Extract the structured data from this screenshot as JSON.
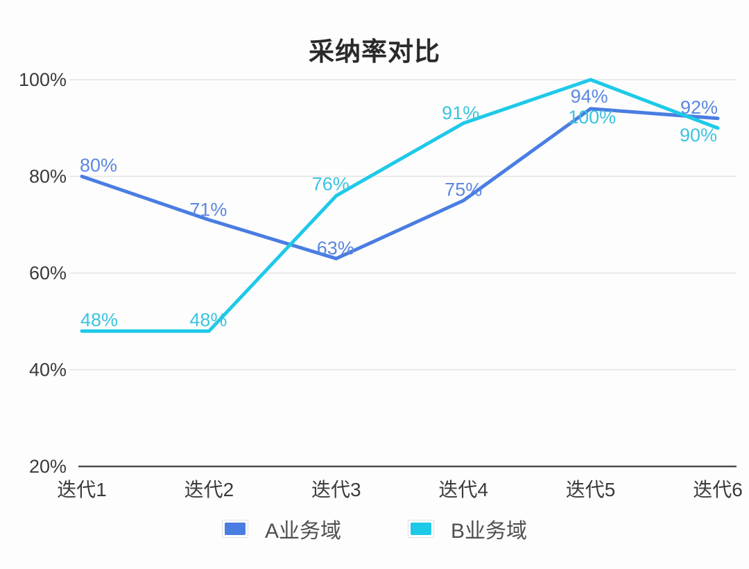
{
  "chart_data": {
    "type": "line",
    "title": "采纳率对比",
    "categories": [
      "迭代1",
      "迭代2",
      "迭代3",
      "迭代4",
      "迭代5",
      "迭代6"
    ],
    "series": [
      {
        "name": "A业务域",
        "color": "#4a7de2",
        "label_color": "#5b87e0",
        "values": [
          80,
          71,
          63,
          75,
          94,
          92
        ]
      },
      {
        "name": "B业务域",
        "color": "#1ec9e8",
        "label_color": "#3cc3de",
        "values": [
          48,
          48,
          76,
          91,
          100,
          90
        ]
      }
    ],
    "ylabel": "",
    "xlabel": "",
    "ylim": [
      20,
      100
    ],
    "yticks": [
      20,
      40,
      60,
      80,
      100
    ],
    "ytick_labels": [
      "20%",
      "40%",
      "60%",
      "80%",
      "100%"
    ],
    "value_suffix": "%",
    "grid": true,
    "data_labels": true,
    "legend_position": "bottom"
  }
}
